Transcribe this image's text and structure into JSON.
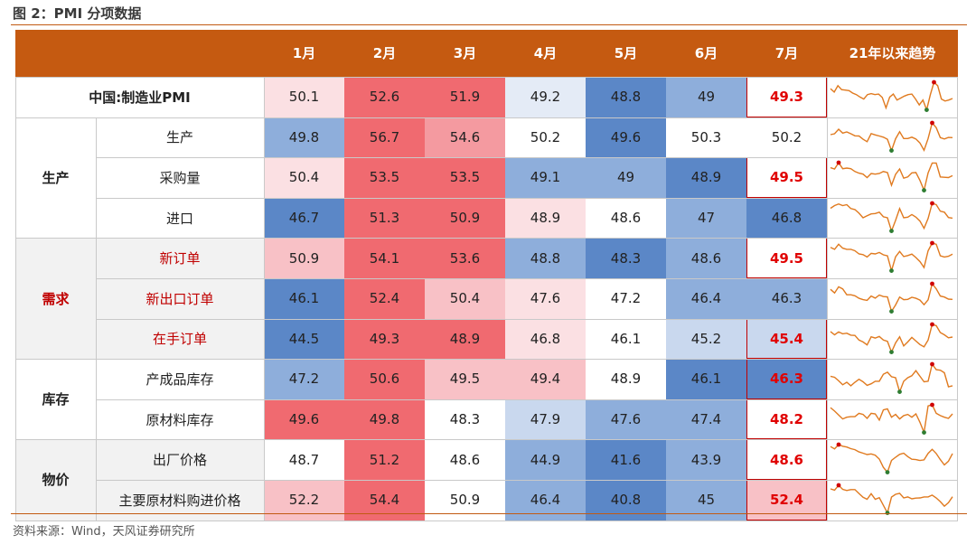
{
  "figure_title": "图 2：PMI 分项数据",
  "source_note": "资料来源：Wind，天风证券研究所",
  "columns": [
    "1月",
    "2月",
    "3月",
    "4月",
    "5月",
    "6月",
    "7月",
    "21年以来趋势"
  ],
  "rows": [
    {
      "group": "",
      "label": "中国:制造业PMI",
      "values": [
        "50.1",
        "52.6",
        "51.9",
        "49.2",
        "48.8",
        "49",
        "49.3"
      ],
      "highlight_jul": true
    },
    {
      "group": "生产",
      "label": "生产",
      "values": [
        "49.8",
        "56.7",
        "54.6",
        "50.2",
        "49.6",
        "50.3",
        "50.2"
      ],
      "highlight_jul": false
    },
    {
      "group": "生产",
      "label": "采购量",
      "values": [
        "50.4",
        "53.5",
        "53.5",
        "49.1",
        "49",
        "48.9",
        "49.5"
      ],
      "highlight_jul": true
    },
    {
      "group": "生产",
      "label": "进口",
      "values": [
        "46.7",
        "51.3",
        "50.9",
        "48.9",
        "48.6",
        "47",
        "46.8"
      ],
      "highlight_jul": false
    },
    {
      "group": "需求",
      "label": "新订单",
      "values": [
        "50.9",
        "54.1",
        "53.6",
        "48.8",
        "48.3",
        "48.6",
        "49.5"
      ],
      "highlight_jul": true
    },
    {
      "group": "需求",
      "label": "新出口订单",
      "values": [
        "46.1",
        "52.4",
        "50.4",
        "47.6",
        "47.2",
        "46.4",
        "46.3"
      ],
      "highlight_jul": false
    },
    {
      "group": "需求",
      "label": "在手订单",
      "values": [
        "44.5",
        "49.3",
        "48.9",
        "46.8",
        "46.1",
        "45.2",
        "45.4"
      ],
      "highlight_jul": true
    },
    {
      "group": "库存",
      "label": "产成品库存",
      "values": [
        "47.2",
        "50.6",
        "49.5",
        "49.4",
        "48.9",
        "46.1",
        "46.3"
      ],
      "highlight_jul": true
    },
    {
      "group": "库存",
      "label": "原材料库存",
      "values": [
        "49.6",
        "49.8",
        "48.3",
        "47.9",
        "47.6",
        "47.4",
        "48.2"
      ],
      "highlight_jul": true
    },
    {
      "group": "物价",
      "label": "出厂价格",
      "values": [
        "48.7",
        "51.2",
        "48.6",
        "44.9",
        "41.6",
        "43.9",
        "48.6"
      ],
      "highlight_jul": true
    },
    {
      "group": "物价",
      "label": "主要原材料购进价格",
      "values": [
        "52.2",
        "54.4",
        "50.9",
        "46.4",
        "40.8",
        "45",
        "52.4"
      ],
      "highlight_jul": true
    }
  ],
  "groups": [
    {
      "name": "生产",
      "red": false
    },
    {
      "name": "需求",
      "red": true
    },
    {
      "name": "库存",
      "red": false
    },
    {
      "name": "物价",
      "red": false
    }
  ],
  "red_labels": [
    "新订单",
    "新出口订单",
    "在手订单"
  ],
  "colors": {
    "header": "#c55a11",
    "deep_blue": "#5b87c7",
    "mid_blue": "#8eaedb",
    "light_blue": "#c9d8ee",
    "pale_blue": "#e4ebf6",
    "pale_pink": "#fbe0e3",
    "light_pink": "#f8c1c6",
    "mid_pink": "#f49aa0",
    "deep_red": "#f06a70",
    "gray_label": "#f2f2f2",
    "sparkline": "#e07a1f",
    "highlight_border": "#c00000"
  },
  "cell_colors": [
    [
      "pale_pink",
      "deep_red",
      "deep_red",
      "pale_blue",
      "deep_blue",
      "mid_blue",
      "white"
    ],
    [
      "mid_blue",
      "deep_red",
      "mid_pink",
      "white",
      "deep_blue",
      "white",
      "white"
    ],
    [
      "pale_pink",
      "deep_red",
      "deep_red",
      "mid_blue",
      "mid_blue",
      "deep_blue",
      "white"
    ],
    [
      "deep_blue",
      "deep_red",
      "deep_red",
      "pale_pink",
      "white",
      "mid_blue",
      "deep_blue"
    ],
    [
      "light_pink",
      "deep_red",
      "deep_red",
      "mid_blue",
      "deep_blue",
      "mid_blue",
      "white"
    ],
    [
      "deep_blue",
      "deep_red",
      "light_pink",
      "pale_pink",
      "white",
      "mid_blue",
      "mid_blue"
    ],
    [
      "deep_blue",
      "deep_red",
      "deep_red",
      "pale_pink",
      "white",
      "light_blue",
      "light_blue"
    ],
    [
      "mid_blue",
      "deep_red",
      "light_pink",
      "light_pink",
      "white",
      "deep_blue",
      "deep_blue"
    ],
    [
      "deep_red",
      "deep_red",
      "white",
      "light_blue",
      "mid_blue",
      "mid_blue",
      "white"
    ],
    [
      "white",
      "deep_red",
      "white",
      "mid_blue",
      "deep_blue",
      "mid_blue",
      "white"
    ],
    [
      "light_pink",
      "deep_red",
      "white",
      "mid_blue",
      "deep_blue",
      "mid_blue",
      "light_pink"
    ]
  ],
  "sparklines": [
    [
      51.3,
      50.6,
      51.9,
      51.1,
      51.0,
      50.9,
      50.4,
      50.1,
      49.6,
      49.2,
      50.1,
      50.3,
      50.1,
      50.2,
      49.5,
      47.4,
      49.6,
      50.2,
      49.0,
      49.4,
      49.8,
      50.1,
      50.2,
      49.2,
      48.0,
      49.0,
      47.0,
      50.1,
      52.6,
      51.9,
      49.2,
      48.8,
      49.0,
      49.3
    ],
    [
      51.5,
      51.9,
      53.9,
      52.2,
      52.7,
      51.9,
      51.0,
      50.9,
      49.5,
      48.4,
      52.0,
      51.4,
      50.9,
      50.4,
      49.5,
      44.5,
      49.7,
      52.8,
      49.8,
      49.8,
      50.4,
      49.6,
      47.8,
      44.6,
      49.8,
      56.7,
      54.6,
      50.2,
      49.6,
      50.3,
      50.2
    ],
    [
      52.0,
      51.6,
      53.6,
      51.7,
      51.9,
      51.7,
      50.8,
      50.3,
      50.0,
      48.9,
      50.2,
      50.0,
      50.2,
      50.8,
      50.5,
      46.5,
      49.9,
      51.6,
      48.7,
      49.1,
      50.4,
      50.5,
      48.0,
      44.9,
      50.4,
      53.5,
      53.5,
      49.1,
      49.0,
      48.9,
      49.5
    ],
    [
      49.8,
      50.6,
      51.1,
      50.6,
      50.9,
      49.7,
      49.4,
      48.3,
      46.9,
      47.5,
      48.1,
      48.2,
      48.6,
      47.2,
      46.9,
      42.9,
      46.1,
      49.7,
      46.9,
      47.1,
      47.9,
      47.1,
      45.9,
      43.7,
      46.7,
      51.3,
      50.9,
      48.9,
      48.6,
      47.0,
      46.8
    ],
    [
      52.3,
      51.5,
      53.6,
      52.0,
      51.5,
      51.5,
      50.9,
      49.6,
      49.3,
      48.3,
      49.8,
      49.6,
      50.2,
      49.2,
      48.8,
      42.6,
      48.4,
      50.6,
      48.5,
      48.9,
      49.5,
      48.1,
      46.4,
      43.9,
      50.9,
      54.1,
      53.6,
      48.8,
      48.3,
      48.6,
      49.5
    ],
    [
      50.2,
      48.8,
      51.2,
      50.4,
      48.1,
      48.1,
      47.7,
      46.7,
      46.2,
      45.9,
      47.6,
      46.8,
      48.0,
      47.4,
      47.3,
      41.6,
      44.1,
      47.2,
      46.2,
      46.3,
      47.1,
      46.7,
      46.0,
      44.2,
      46.1,
      52.4,
      50.4,
      47.6,
      47.2,
      46.4,
      46.3
    ],
    [
      47.1,
      46.1,
      47.0,
      46.4,
      46.6,
      46.0,
      45.9,
      44.5,
      43.9,
      43.0,
      45.5,
      45.1,
      45.6,
      44.5,
      44.1,
      40.8,
      43.6,
      45.5,
      42.7,
      43.9,
      45.3,
      44.2,
      43.1,
      42.4,
      44.5,
      49.3,
      48.9,
      46.8,
      46.1,
      45.2,
      45.4
    ],
    [
      48.2,
      48.0,
      47.3,
      46.5,
      47.0,
      46.3,
      47.0,
      47.6,
      47.1,
      46.4,
      46.7,
      47.2,
      47.2,
      48.6,
      49.0,
      48.1,
      47.9,
      45.1,
      47.2,
      47.9,
      48.3,
      49.3,
      48.2,
      47.1,
      47.2,
      50.6,
      49.5,
      49.4,
      48.9,
      46.1,
      46.3
    ],
    [
      49.3,
      48.7,
      48.0,
      47.3,
      47.6,
      47.7,
      47.7,
      48.3,
      48.1,
      47.4,
      48.3,
      48.2,
      47.1,
      48.9,
      49.1,
      47.6,
      48.1,
      47.3,
      47.9,
      48.1,
      47.6,
      48.2,
      46.7,
      44.9,
      49.6,
      49.8,
      48.3,
      47.9,
      47.6,
      47.4,
      48.2
    ],
    [
      52.9,
      51.5,
      54.1,
      53.1,
      52.6,
      51.6,
      51.0,
      49.6,
      48.8,
      48.0,
      48.4,
      47.6,
      45.2,
      40.1,
      37.1,
      44.4,
      46.3,
      48.1,
      48.8,
      46.7,
      45.1,
      44.9,
      44.3,
      44.7,
      48.7,
      51.2,
      48.6,
      44.9,
      41.6,
      43.9,
      48.6
    ],
    [
      62.1,
      60.6,
      66.6,
      61.6,
      60.1,
      61.2,
      61.2,
      56.4,
      51.7,
      49.3,
      56.2,
      49.3,
      51.3,
      41.8,
      32.4,
      52.0,
      55.4,
      56.6,
      50.9,
      52.2,
      49.8,
      50.7,
      50.9,
      52.2,
      52.2,
      54.4,
      50.9,
      46.4,
      40.8,
      45.0,
      52.4
    ]
  ]
}
